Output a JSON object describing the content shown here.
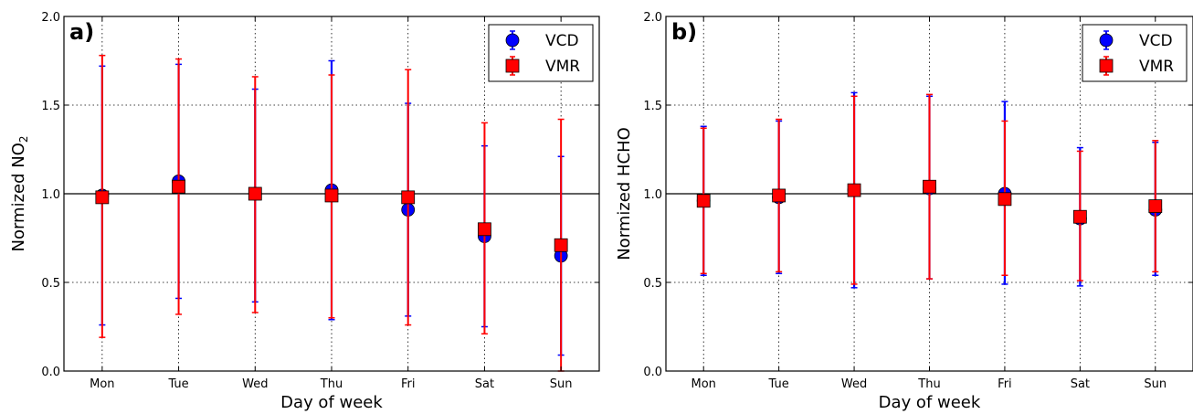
{
  "chart_data": [
    {
      "type": "scatter",
      "panel_label": "a)",
      "xlabel": "Day of week",
      "ylabel": "Normized NO",
      "ylabel_sub": "2",
      "categories": [
        "Mon",
        "Tue",
        "Wed",
        "Thu",
        "Fri",
        "Sat",
        "Sun"
      ],
      "ylim": [
        0,
        2
      ],
      "yticks": [
        "0.0",
        "0.5",
        "1.0",
        "1.5",
        "2.0"
      ],
      "grid": true,
      "reference_line": 1.0,
      "legend_position": "top-right",
      "series": [
        {
          "name": "VCD",
          "marker": "circle",
          "color": "#0000ff",
          "values": [
            0.99,
            1.07,
            1.0,
            1.02,
            0.91,
            0.76,
            0.65
          ],
          "err_low": [
            0.26,
            0.41,
            0.39,
            0.29,
            0.31,
            0.25,
            0.09
          ],
          "err_high": [
            1.72,
            1.73,
            1.59,
            1.75,
            1.51,
            1.27,
            1.21
          ]
        },
        {
          "name": "VMR",
          "marker": "square",
          "color": "#ff0000",
          "values": [
            0.98,
            1.04,
            1.0,
            0.99,
            0.98,
            0.8,
            0.71
          ],
          "err_low": [
            0.19,
            0.32,
            0.33,
            0.3,
            0.26,
            0.21,
            0.0
          ],
          "err_high": [
            1.78,
            1.76,
            1.66,
            1.67,
            1.7,
            1.4,
            1.42
          ]
        }
      ]
    },
    {
      "type": "scatter",
      "panel_label": "b)",
      "xlabel": "Day of week",
      "ylabel": "Normized HCHO",
      "ylabel_sub": "",
      "categories": [
        "Mon",
        "Tue",
        "Wed",
        "Thu",
        "Fri",
        "Sat",
        "Sun"
      ],
      "ylim": [
        0,
        2
      ],
      "yticks": [
        "0.0",
        "0.5",
        "1.0",
        "1.5",
        "2.0"
      ],
      "grid": true,
      "reference_line": 1.0,
      "legend_position": "top-right",
      "series": [
        {
          "name": "VCD",
          "marker": "circle",
          "color": "#0000ff",
          "values": [
            0.96,
            0.98,
            1.02,
            1.03,
            1.0,
            0.86,
            0.91
          ],
          "err_low": [
            0.54,
            0.55,
            0.47,
            0.52,
            0.49,
            0.48,
            0.54
          ],
          "err_high": [
            1.38,
            1.41,
            1.57,
            1.55,
            1.52,
            1.26,
            1.29
          ]
        },
        {
          "name": "VMR",
          "marker": "square",
          "color": "#ff0000",
          "values": [
            0.96,
            0.99,
            1.02,
            1.04,
            0.97,
            0.87,
            0.93
          ],
          "err_low": [
            0.55,
            0.56,
            0.49,
            0.52,
            0.54,
            0.51,
            0.56
          ],
          "err_high": [
            1.37,
            1.42,
            1.55,
            1.56,
            1.41,
            1.24,
            1.3
          ]
        }
      ]
    }
  ]
}
